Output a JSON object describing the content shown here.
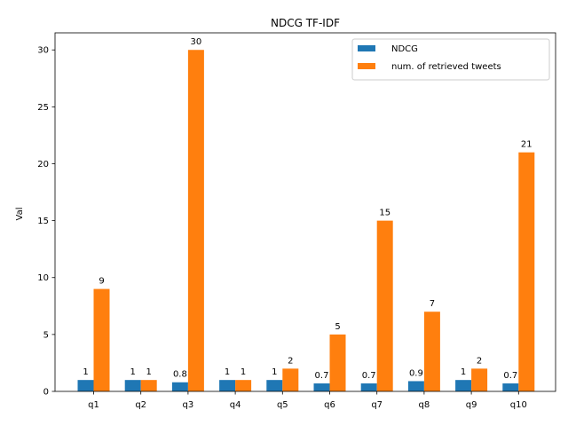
{
  "chart_data": {
    "type": "bar",
    "title": "NDCG TF-IDF",
    "xlabel": "",
    "ylabel": "Val",
    "categories": [
      "q1",
      "q2",
      "q3",
      "q4",
      "q5",
      "q6",
      "q7",
      "q8",
      "q9",
      "q10"
    ],
    "series": [
      {
        "name": "NDCG",
        "color": "#1f77b4",
        "values": [
          1,
          1,
          0.8,
          1,
          1,
          0.7,
          0.7,
          0.9,
          1,
          0.7
        ],
        "labels": [
          "1",
          "1",
          "0.8",
          "1",
          "1",
          "0.7",
          "0.7",
          "0.9",
          "1",
          "0.7"
        ]
      },
      {
        "name": "num. of retrieved tweets",
        "color": "#ff7f0e",
        "values": [
          9,
          1,
          30,
          1,
          2,
          5,
          15,
          7,
          2,
          21
        ],
        "labels": [
          "9",
          "1",
          "30",
          "1",
          "2",
          "5",
          "15",
          "7",
          "2",
          "21"
        ]
      }
    ],
    "yticks": [
      0,
      5,
      10,
      15,
      20,
      25,
      30
    ],
    "ylim": [
      0,
      31.5
    ],
    "grid": false,
    "legend_position": "upper-right"
  }
}
